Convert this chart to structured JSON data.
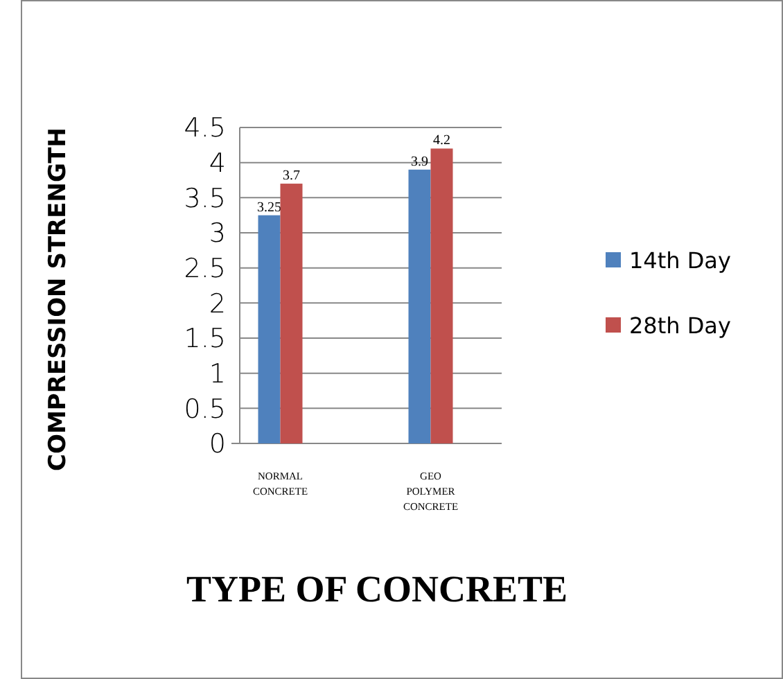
{
  "chart_data": {
    "type": "bar",
    "xlabel": "TYPE OF CONCRETE",
    "ylabel": "COMPRESSION STRENGTH",
    "categories": [
      "NORMAL CONCRETE",
      "GEO POLYMER CONCRETE"
    ],
    "series": [
      {
        "name": "14th Day",
        "color": "#4f81bd",
        "values": [
          3.25,
          3.9
        ]
      },
      {
        "name": "28th Day",
        "color": "#c0504d",
        "values": [
          3.7,
          4.2
        ]
      }
    ],
    "ylim": [
      0,
      4.5
    ],
    "yticks": [
      0,
      0.5,
      1,
      1.5,
      2,
      2.5,
      3,
      3.5,
      4,
      4.5
    ],
    "grid": "y",
    "legend": "right",
    "data_labels": true
  }
}
